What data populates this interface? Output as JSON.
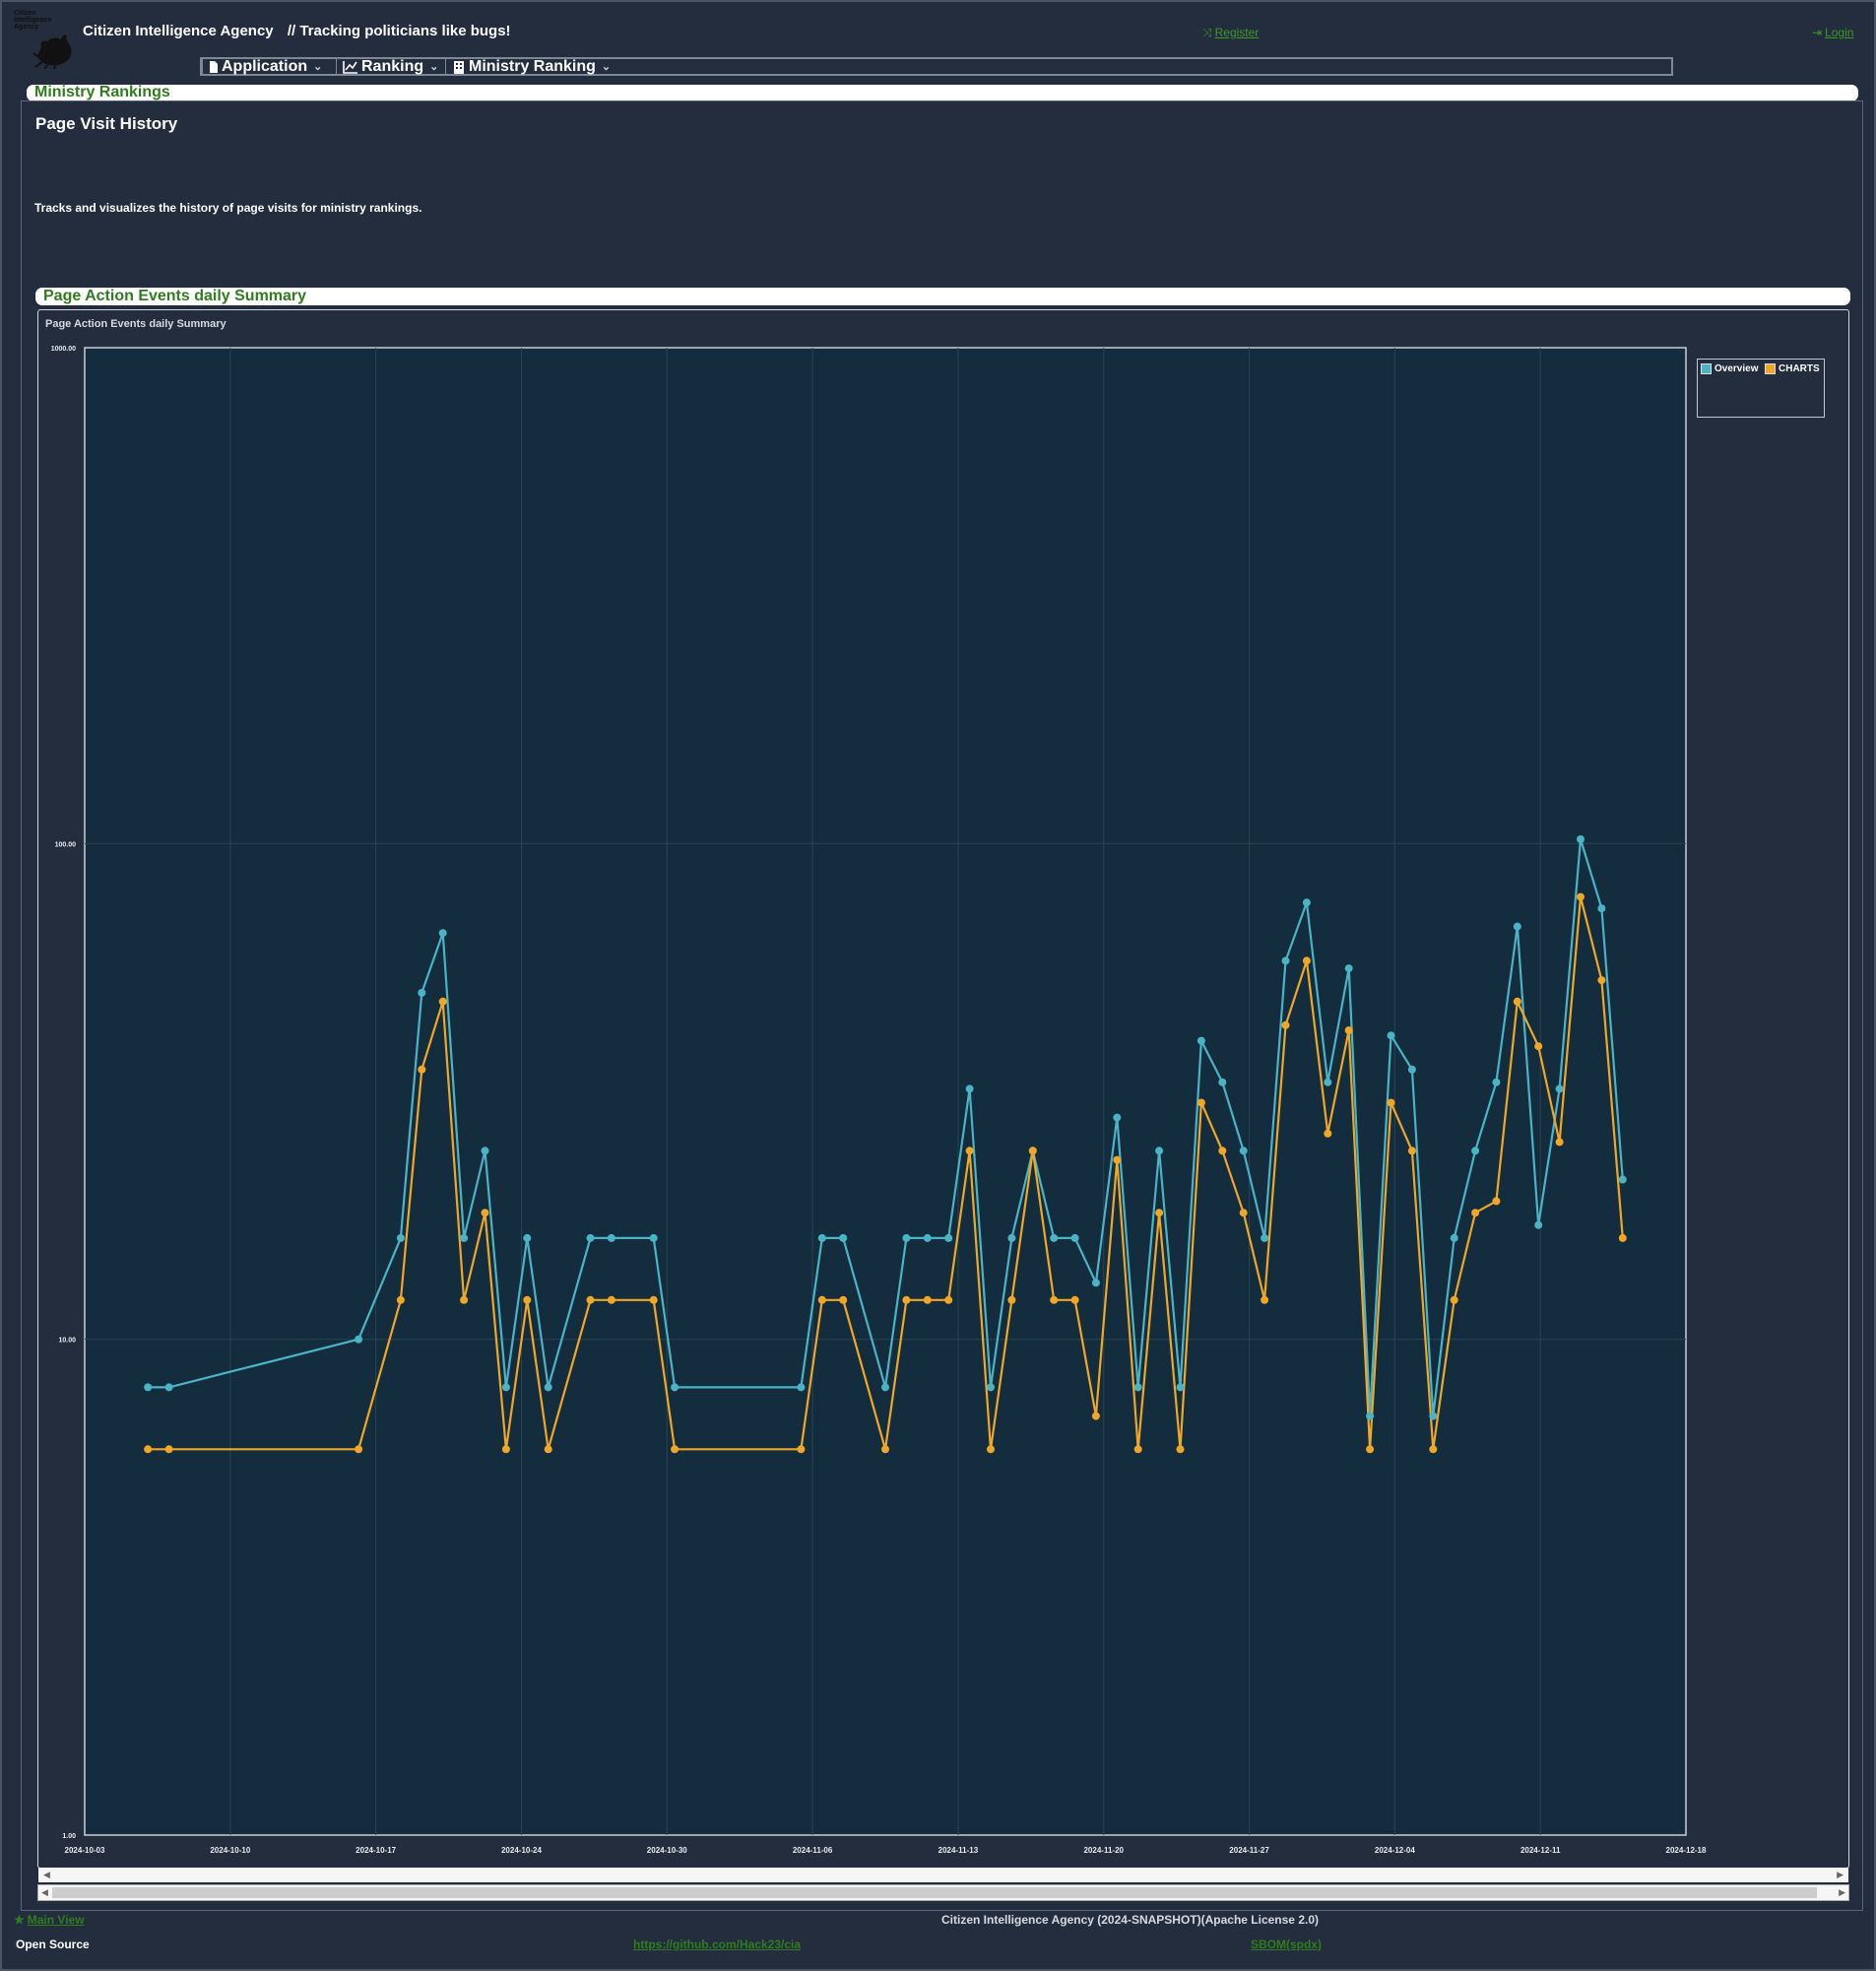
{
  "header": {
    "logo_text": "Citizen Intelligence Agency",
    "title": "Citizen Intelligence Agency",
    "tagline": "// Tracking politicians like bugs!",
    "register_label": "Register",
    "login_label": "Login"
  },
  "menu": {
    "items": [
      {
        "label": "Application",
        "icon": "file-icon"
      },
      {
        "label": "Ranking",
        "icon": "line-chart-icon"
      },
      {
        "label": "Ministry Ranking",
        "icon": "building-icon"
      }
    ]
  },
  "page": {
    "panel_title": "Ministry Rankings",
    "heading": "Page Visit History",
    "description": "Tracks and visualizes the history of page visits for ministry rankings.",
    "summary_panel_title": "Page Action Events daily Summary"
  },
  "chart_data": {
    "type": "line",
    "title": "Page Action Events daily Summary",
    "yscale": "log",
    "ylim": [
      1,
      1000
    ],
    "yticks": [
      "1000.00",
      "100.00",
      "10.00",
      "1.00"
    ],
    "xlabels": [
      "2024-10-03",
      "2024-10-10",
      "2024-10-17",
      "2024-10-24",
      "2024-10-30",
      "2024-11-06",
      "2024-11-13",
      "2024-11-20",
      "2024-11-27",
      "2024-12-04",
      "2024-12-11",
      "2024-12-18"
    ],
    "xlim_days": [
      0,
      76
    ],
    "legend": "top-right",
    "colors": {
      "Overview": "#4bb3c6",
      "CHARTS": "#f0a726"
    },
    "series": [
      {
        "name": "Overview",
        "points": [
          [
            3,
            8
          ],
          [
            4,
            8
          ],
          [
            13,
            10
          ],
          [
            15,
            16
          ],
          [
            16,
            50
          ],
          [
            17,
            66
          ],
          [
            18,
            16
          ],
          [
            19,
            24
          ],
          [
            20,
            8
          ],
          [
            21,
            16
          ],
          [
            22,
            8
          ],
          [
            24,
            16
          ],
          [
            25,
            16
          ],
          [
            27,
            16
          ],
          [
            28,
            8
          ],
          [
            34,
            8
          ],
          [
            35,
            16
          ],
          [
            36,
            16
          ],
          [
            38,
            8
          ],
          [
            39,
            16
          ],
          [
            40,
            16
          ],
          [
            41,
            16
          ],
          [
            42,
            32
          ],
          [
            43,
            8
          ],
          [
            44,
            16
          ],
          [
            45,
            24
          ],
          [
            46,
            16
          ],
          [
            47,
            16
          ],
          [
            48,
            13
          ],
          [
            49,
            28
          ],
          [
            50,
            8
          ],
          [
            51,
            24
          ],
          [
            52,
            8
          ],
          [
            53,
            40
          ],
          [
            54,
            33
          ],
          [
            55,
            24
          ],
          [
            56,
            16
          ],
          [
            57,
            58
          ],
          [
            58,
            76
          ],
          [
            59,
            33
          ],
          [
            60,
            56
          ],
          [
            61,
            7
          ],
          [
            62,
            41
          ],
          [
            63,
            35
          ],
          [
            64,
            7
          ],
          [
            65,
            16
          ],
          [
            66,
            24
          ],
          [
            67,
            33
          ],
          [
            68,
            68
          ],
          [
            69,
            17
          ],
          [
            70,
            32
          ],
          [
            71,
            102
          ],
          [
            72,
            74
          ],
          [
            73,
            21
          ]
        ]
      },
      {
        "name": "CHARTS",
        "points": [
          [
            3,
            6
          ],
          [
            4,
            6
          ],
          [
            13,
            6
          ],
          [
            15,
            12
          ],
          [
            16,
            35
          ],
          [
            17,
            48
          ],
          [
            18,
            12
          ],
          [
            19,
            18
          ],
          [
            20,
            6
          ],
          [
            21,
            12
          ],
          [
            22,
            6
          ],
          [
            24,
            12
          ],
          [
            25,
            12
          ],
          [
            27,
            12
          ],
          [
            28,
            6
          ],
          [
            34,
            6
          ],
          [
            35,
            12
          ],
          [
            36,
            12
          ],
          [
            38,
            6
          ],
          [
            39,
            12
          ],
          [
            40,
            12
          ],
          [
            41,
            12
          ],
          [
            42,
            24
          ],
          [
            43,
            6
          ],
          [
            44,
            12
          ],
          [
            45,
            24
          ],
          [
            46,
            12
          ],
          [
            47,
            12
          ],
          [
            48,
            7
          ],
          [
            49,
            23
          ],
          [
            50,
            6
          ],
          [
            51,
            18
          ],
          [
            52,
            6
          ],
          [
            53,
            30
          ],
          [
            54,
            24
          ],
          [
            55,
            18
          ],
          [
            56,
            12
          ],
          [
            57,
            43
          ],
          [
            58,
            58
          ],
          [
            59,
            26
          ],
          [
            60,
            42
          ],
          [
            61,
            6
          ],
          [
            62,
            30
          ],
          [
            63,
            24
          ],
          [
            64,
            6
          ],
          [
            65,
            12
          ],
          [
            66,
            18
          ],
          [
            67,
            19
          ],
          [
            68,
            48
          ],
          [
            69,
            39
          ],
          [
            70,
            25
          ],
          [
            71,
            78
          ],
          [
            72,
            53
          ],
          [
            73,
            16
          ]
        ]
      }
    ]
  },
  "footer": {
    "main_view_label": "Main View",
    "copyright": "Citizen Intelligence Agency (2024-SNAPSHOT)(Apache License 2.0)",
    "open_source_label": "Open Source",
    "github_link": "https://github.com/Hack23/cia",
    "sbom_link": "SBOM(spdx)"
  }
}
